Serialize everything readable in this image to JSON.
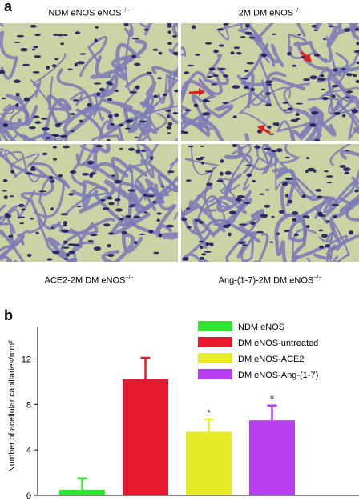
{
  "panel_a": {
    "letter": "a",
    "labels": {
      "top_left": "NDM eNOS",
      "top_right": "2M DM eNOS",
      "bottom_left": "ACE2-2M DM eNOS",
      "bottom_right": "Ang-(1-7)-2M DM eNOS",
      "superscript": "−/−"
    },
    "colors": {
      "background": "#cbd2a4",
      "vessel": "#7c78b8",
      "nucleus": "#1f1d5e",
      "arrow": "#e21d1d"
    }
  },
  "panel_b": {
    "letter": "b",
    "asterisk": "*"
  },
  "chart_data": {
    "type": "bar",
    "ylabel": "Number of acellular capillaries/mm²",
    "ylim": [
      0,
      14
    ],
    "yticks": [
      "0",
      "4",
      "8",
      "12"
    ],
    "categories": [
      "NDM eNOS",
      "DM eNOS-untreated",
      "DM eNOS-ACE2",
      "DM eNOS-Ang-(1-7)"
    ],
    "values": [
      0.5,
      10.2,
      5.6,
      6.6
    ],
    "errors": [
      1.0,
      1.9,
      1.1,
      1.3
    ],
    "significant": [
      false,
      false,
      true,
      true
    ],
    "colors": [
      "#33e533",
      "#e8182e",
      "#e6ec2a",
      "#b73ef0"
    ],
    "legend": [
      "NDM eNOS",
      "DM eNOS-untreated",
      "DM eNOS-ACE2",
      "DM eNOS-Ang-(1-7)"
    ],
    "legend_position": "top-right"
  }
}
